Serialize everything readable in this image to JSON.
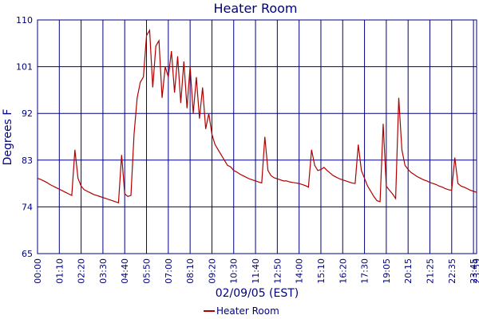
{
  "chart_data": {
    "type": "line",
    "title": "Heater Room",
    "x_label": "02/09/05 (EST)",
    "y_label": "Degrees F",
    "ylim": [
      65,
      110
    ],
    "yticks": [
      65,
      74,
      83,
      92,
      101,
      110
    ],
    "grid": true,
    "legend": "bottom",
    "categories": [
      "00:00",
      null,
      null,
      null,
      null,
      null,
      null,
      "01:10",
      null,
      null,
      null,
      null,
      null,
      null,
      "02:20",
      null,
      null,
      null,
      null,
      null,
      null,
      "03:30",
      null,
      null,
      null,
      null,
      null,
      null,
      "04:40",
      null,
      null,
      null,
      null,
      null,
      null,
      "05:50",
      null,
      null,
      null,
      null,
      null,
      null,
      "07:00",
      null,
      null,
      null,
      null,
      null,
      null,
      "08:10",
      null,
      null,
      null,
      null,
      null,
      null,
      "09:20",
      null,
      null,
      null,
      null,
      null,
      null,
      "10:30",
      null,
      null,
      null,
      null,
      null,
      null,
      "11:40",
      null,
      null,
      null,
      null,
      null,
      null,
      "12:50",
      null,
      null,
      null,
      null,
      null,
      null,
      "14:00",
      null,
      null,
      null,
      null,
      null,
      null,
      "15:10",
      null,
      null,
      null,
      null,
      null,
      null,
      "16:20",
      null,
      null,
      null,
      null,
      null,
      null,
      "17:30",
      null,
      null,
      null,
      null,
      null,
      null,
      "19:05",
      null,
      null,
      null,
      null,
      null,
      null,
      "20:15",
      null,
      null,
      null,
      null,
      null,
      null,
      "21:25",
      null,
      null,
      null,
      null,
      null,
      null,
      "22:35",
      null,
      null,
      null,
      null,
      null,
      null,
      "23:45",
      "23:59"
    ],
    "series": [
      {
        "name": "Heater Room",
        "color": "#b00000",
        "values": [
          79.5,
          79.3,
          79,
          78.7,
          78.3,
          78,
          77.7,
          77.4,
          77.1,
          76.8,
          76.5,
          76.2,
          85,
          79.5,
          78,
          77.3,
          77,
          76.7,
          76.4,
          76.2,
          76,
          75.8,
          75.6,
          75.4,
          75.2,
          75,
          74.8,
          84,
          76.5,
          76,
          76.2,
          88,
          95,
          98,
          99,
          107,
          108,
          97,
          105,
          106,
          95,
          101,
          99,
          104,
          96,
          103,
          94,
          102,
          93,
          101,
          92,
          99,
          91,
          97,
          89,
          92,
          88,
          86,
          85,
          84,
          83,
          82,
          81.7,
          81,
          80.7,
          80.3,
          80,
          79.7,
          79.4,
          79.2,
          79,
          78.8,
          78.6,
          87.5,
          81,
          80,
          79.6,
          79.4,
          79.2,
          79,
          79,
          78.8,
          78.7,
          78.6,
          78.5,
          78.3,
          78.1,
          77.8,
          85,
          82,
          81,
          81.2,
          81.6,
          81,
          80.5,
          80,
          79.7,
          79.4,
          79.2,
          79,
          78.8,
          78.6,
          78.5,
          86,
          81,
          79.5,
          78,
          77,
          76,
          75.2,
          75,
          90,
          78,
          77.2,
          76.5,
          75.6,
          95,
          85,
          82,
          81.2,
          80.6,
          80.2,
          79.8,
          79.5,
          79.2,
          79,
          78.7,
          78.5,
          78.3,
          78,
          77.8,
          77.5,
          77.3,
          77.2,
          83.5,
          78.5,
          78,
          77.8,
          77.5,
          77.2,
          77,
          76.8
        ]
      }
    ]
  }
}
